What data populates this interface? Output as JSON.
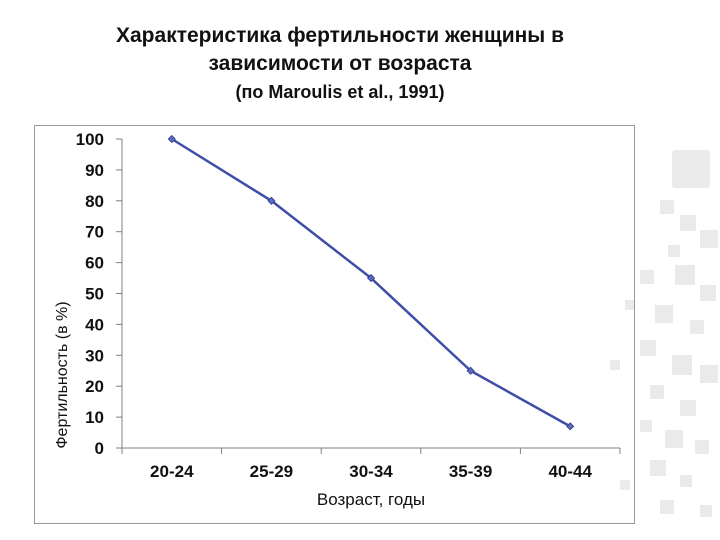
{
  "title": {
    "line1": "Характеристика фертильности женщины в",
    "line2": "зависимости от возраста",
    "subtitle": "(по Maroulis et al., 1991)"
  },
  "colors": {
    "line": "#3f4fa8",
    "marker": "#5a6bc4",
    "axis": "#808080",
    "text": "#111111"
  },
  "chart_data": {
    "type": "line",
    "title": "Характеристика фертильности женщины в зависимости от возраста",
    "subtitle": "(по Maroulis et al., 1991)",
    "xlabel": "Возраст, годы",
    "ylabel": "Фертильность (в %)",
    "categories": [
      "20-24",
      "25-29",
      "30-34",
      "35-39",
      "40-44"
    ],
    "values": [
      100,
      80,
      55,
      25,
      7
    ],
    "ylim": [
      0,
      100
    ],
    "yticks": [
      0,
      10,
      20,
      30,
      40,
      50,
      60,
      70,
      80,
      90,
      100
    ],
    "grid": false,
    "legend": "none"
  }
}
